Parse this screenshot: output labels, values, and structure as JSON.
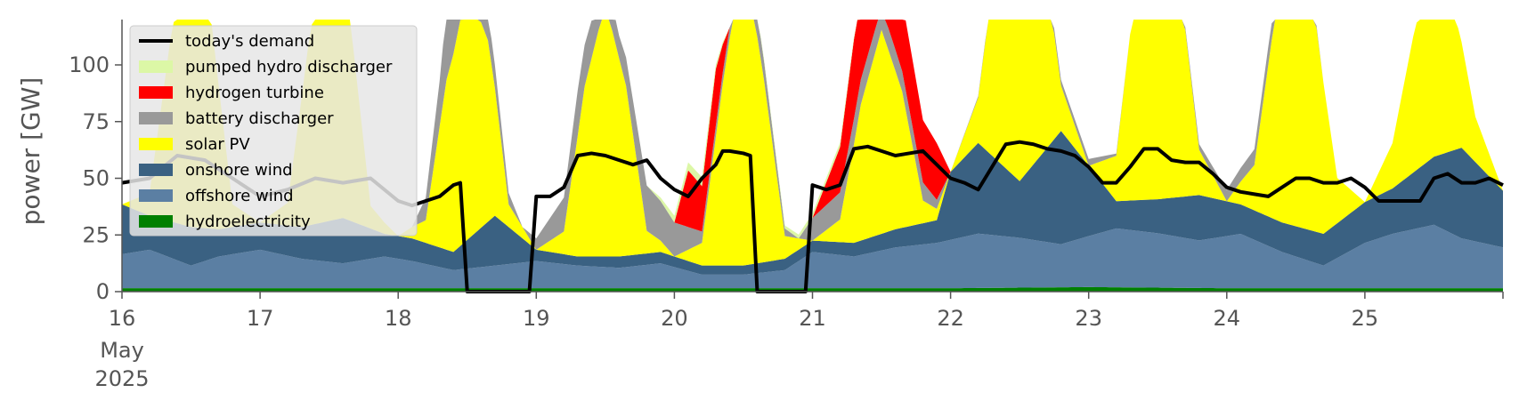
{
  "chart_data": {
    "type": "area",
    "title": "",
    "xlabel": "",
    "ylabel": "power [GW]",
    "x_range": [
      "2025-05-16",
      "2025-05-26"
    ],
    "ylim": [
      0,
      120
    ],
    "yticks": [
      0,
      25,
      50,
      75,
      100
    ],
    "xtick_labels": [
      "16",
      "17",
      "18",
      "19",
      "20",
      "21",
      "22",
      "23",
      "24",
      "25"
    ],
    "x_secondary_label": [
      "May",
      "2025"
    ],
    "grid": false,
    "legend_position": "top-left",
    "series": [
      {
        "name": "hydroelectricity",
        "color": "#008000",
        "x": [
          16,
          17,
          18,
          19,
          20,
          21,
          22,
          23,
          24,
          25,
          26
        ],
        "values": [
          1.5,
          1.5,
          1.5,
          1.5,
          1.5,
          1.5,
          1.5,
          2,
          1.5,
          1.5,
          1.5
        ]
      },
      {
        "name": "offshore wind",
        "color": "#5b7fa3",
        "x": [
          16,
          16.2,
          16.5,
          16.7,
          17,
          17.3,
          17.6,
          17.9,
          18.1,
          18.4,
          18.7,
          19,
          19.3,
          19.6,
          19.9,
          20.2,
          20.5,
          20.8,
          21,
          21.3,
          21.6,
          21.9,
          22.2,
          22.5,
          22.8,
          23.2,
          23.5,
          23.8,
          24.1,
          24.4,
          24.7,
          25,
          25.2,
          25.5,
          25.7,
          26
        ],
        "values": [
          15,
          17,
          10,
          14,
          17,
          13,
          11,
          14,
          12,
          8,
          10,
          12,
          10,
          9,
          11,
          6,
          6,
          8,
          16,
          14,
          18,
          20,
          24,
          22,
          19,
          26,
          24,
          21,
          24,
          16,
          10,
          20,
          24,
          28,
          22,
          18
        ]
      },
      {
        "name": "onshore wind",
        "color": "#3a6182",
        "x": [
          16,
          16.2,
          16.5,
          16.7,
          17,
          17.3,
          17.6,
          17.9,
          18.1,
          18.4,
          18.7,
          19,
          19.3,
          19.6,
          19.9,
          20.2,
          20.5,
          20.8,
          21,
          21.3,
          21.6,
          21.9,
          22,
          22.2,
          22.5,
          22.8,
          23.2,
          23.5,
          23.8,
          24.1,
          24.4,
          24.7,
          25,
          25.2,
          25.5,
          25.7,
          26
        ],
        "values": [
          22,
          15,
          17,
          12,
          12,
          14,
          20,
          10,
          10,
          8,
          22,
          5,
          4,
          5,
          5,
          4,
          4,
          5,
          5,
          6,
          8,
          10,
          30,
          40,
          25,
          50,
          12,
          15,
          20,
          13,
          13,
          14,
          18,
          20,
          30,
          40,
          25
        ]
      },
      {
        "name": "solar PV",
        "color": "#ffff00",
        "x": [
          16,
          16.2,
          16.35,
          16.5,
          16.65,
          16.8,
          17,
          17.2,
          17.35,
          17.5,
          17.65,
          17.8,
          18,
          18.2,
          18.35,
          18.5,
          18.65,
          18.8,
          19,
          19.2,
          19.35,
          19.5,
          19.65,
          19.8,
          20,
          20.2,
          20.35,
          20.5,
          20.65,
          20.8,
          21,
          21.2,
          21.35,
          21.5,
          21.65,
          21.8,
          22,
          22.2,
          22.35,
          22.5,
          22.65,
          22.8,
          23,
          23.2,
          23.35,
          23.5,
          23.65,
          23.8,
          24,
          24.2,
          24.35,
          24.5,
          24.65,
          24.8,
          25,
          25.2,
          25.35,
          25.5,
          25.65,
          25.8,
          26
        ],
        "values": [
          0,
          10,
          80,
          130,
          90,
          10,
          0,
          10,
          80,
          130,
          90,
          10,
          0,
          10,
          75,
          112,
          80,
          10,
          0,
          10,
          75,
          112,
          75,
          10,
          0,
          10,
          80,
          140,
          80,
          10,
          0,
          10,
          60,
          90,
          60,
          10,
          0,
          20,
          100,
          140,
          100,
          20,
          0,
          20,
          100,
          135,
          100,
          20,
          0,
          20,
          90,
          120,
          90,
          20,
          0,
          20,
          60,
          90,
          60,
          20,
          0
        ]
      },
      {
        "name": "battery discharger",
        "color": "#999999",
        "x": [
          18.1,
          18.3,
          18.45,
          18.6,
          18.9,
          19,
          19.1,
          19.3,
          19.6,
          19.8,
          20,
          20.2,
          20.4,
          20.6,
          20.9,
          21,
          21.2,
          21.5,
          21.8,
          22,
          22.6,
          23,
          23.3,
          23.6,
          24,
          24.3,
          24.7,
          25,
          25.4,
          25.8,
          26
        ],
        "values": [
          0,
          20,
          55,
          15,
          0,
          5,
          10,
          20,
          10,
          20,
          15,
          5,
          5,
          10,
          0,
          10,
          12,
          10,
          8,
          0,
          2,
          3,
          0,
          0,
          5,
          8,
          0,
          0,
          0,
          0,
          0
        ]
      },
      {
        "name": "hydrogen turbine",
        "color": "#ff0000",
        "x": [
          19.9,
          20,
          20.1,
          20.2,
          20.3,
          20.4,
          21,
          21.2,
          21.3,
          21.5,
          21.7,
          21.9,
          22
        ],
        "values": [
          0,
          0,
          25,
          20,
          25,
          0,
          0,
          20,
          35,
          35,
          30,
          25,
          0
        ]
      },
      {
        "name": "pumped hydro discharger",
        "color": "#dcf7a6",
        "x": [
          18.9,
          19,
          19.2,
          19.5,
          19.8,
          20,
          20.2,
          20.4,
          21,
          21.2,
          21.4,
          21.8,
          22
        ],
        "values": [
          0,
          0,
          0,
          0,
          0,
          3,
          4,
          0,
          2,
          2,
          0,
          0,
          0
        ]
      },
      {
        "name": "today's demand",
        "color": "#000000",
        "type": "line",
        "x": [
          16,
          16.2,
          16.4,
          16.6,
          16.8,
          17,
          17.2,
          17.4,
          17.6,
          17.8,
          18,
          18.1,
          18.2,
          18.3,
          18.4,
          18.45,
          18.5,
          18.6,
          18.8,
          18.95,
          19,
          19.1,
          19.2,
          19.3,
          19.4,
          19.5,
          19.6,
          19.7,
          19.8,
          19.9,
          20,
          20.1,
          20.2,
          20.3,
          20.35,
          20.4,
          20.5,
          20.55,
          20.6,
          20.8,
          20.95,
          21,
          21.1,
          21.2,
          21.3,
          21.4,
          21.5,
          21.6,
          21.7,
          21.8,
          21.9,
          22,
          22.1,
          22.2,
          22.3,
          22.4,
          22.5,
          22.6,
          22.7,
          22.8,
          22.9,
          23,
          23.1,
          23.2,
          23.3,
          23.4,
          23.5,
          23.6,
          23.7,
          23.8,
          23.9,
          24,
          24.1,
          24.2,
          24.3,
          24.4,
          24.5,
          24.6,
          24.7,
          24.8,
          24.9,
          25,
          25.1,
          25.2,
          25.3,
          25.4,
          25.5,
          25.6,
          25.7,
          25.8,
          25.9,
          26
        ],
        "values": [
          48,
          50,
          60,
          58,
          50,
          42,
          45,
          50,
          48,
          50,
          40,
          38,
          40,
          42,
          47,
          48,
          0,
          0,
          0,
          0,
          42,
          42,
          46,
          60,
          61,
          60,
          58,
          56,
          58,
          50,
          45,
          42,
          50,
          56,
          62,
          62,
          61,
          60,
          0,
          0,
          0,
          47,
          45,
          47,
          63,
          64,
          62,
          60,
          61,
          62,
          56,
          50,
          48,
          45,
          55,
          65,
          66,
          65,
          63,
          62,
          60,
          55,
          48,
          48,
          55,
          63,
          63,
          58,
          57,
          57,
          52,
          46,
          44,
          43,
          42,
          46,
          50,
          50,
          48,
          48,
          50,
          46,
          40,
          40,
          40,
          40,
          50,
          52,
          48,
          48,
          50,
          47
        ]
      }
    ],
    "legend": [
      {
        "name": "today's demand",
        "color": "#000000",
        "kind": "line"
      },
      {
        "name": "pumped hydro discharger",
        "color": "#dcf7a6",
        "kind": "patch"
      },
      {
        "name": "hydrogen turbine",
        "color": "#ff0000",
        "kind": "patch"
      },
      {
        "name": "battery discharger",
        "color": "#999999",
        "kind": "patch"
      },
      {
        "name": "solar PV",
        "color": "#ffff00",
        "kind": "patch"
      },
      {
        "name": "onshore wind",
        "color": "#3a6182",
        "kind": "patch"
      },
      {
        "name": "offshore wind",
        "color": "#5b7fa3",
        "kind": "patch"
      },
      {
        "name": "hydroelectricity",
        "color": "#008000",
        "kind": "patch"
      }
    ]
  }
}
